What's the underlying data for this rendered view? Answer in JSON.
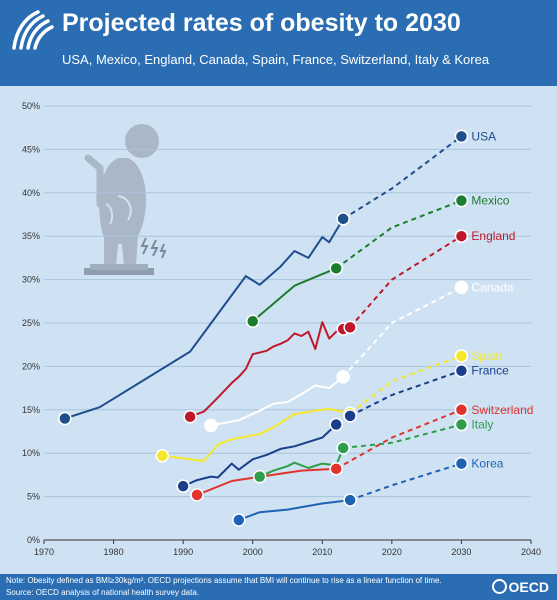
{
  "header": {
    "title": "Projected rates of obesity to 2030",
    "subtitle": "USA, Mexico, England, Canada, Spain, France, Switzerland, Italy & Korea"
  },
  "footer": {
    "note": "Note: Obesity defined as BMI≥30kg/m². OECD projections assume that BMI will continue to rise as a linear function of time.",
    "source": "Source: OECD analysis of national health survey data.",
    "brand": "OECD"
  },
  "chart_data": {
    "type": "line",
    "title": "Projected rates of obesity to 2030",
    "subtitle": "USA, Mexico, England, Canada, Spain, France, Switzerland, Italy & Korea",
    "xlabel": "",
    "ylabel": "",
    "xlim": [
      1970,
      2040
    ],
    "ylim": [
      0,
      50
    ],
    "x_ticks": [
      1970,
      1980,
      1990,
      2000,
      2010,
      2020,
      2030,
      2040
    ],
    "y_ticks": [
      0,
      5,
      10,
      15,
      20,
      25,
      30,
      35,
      40,
      45,
      50
    ],
    "y_tick_labels": [
      "0%",
      "5%",
      "10%",
      "15%",
      "20%",
      "25%",
      "30%",
      "35%",
      "40%",
      "45%",
      "50%"
    ],
    "grid": true,
    "legend": "labels at line ends (right)",
    "series": [
      {
        "name": "USA",
        "color": "#1f4e8c",
        "observed": [
          [
            1973,
            14
          ],
          [
            1978,
            15.3
          ],
          [
            1991,
            21.7
          ],
          [
            1999,
            30.4
          ],
          [
            2001,
            29.4
          ],
          [
            2004,
            31.5
          ],
          [
            2006,
            33.3
          ],
          [
            2008,
            32.5
          ],
          [
            2010,
            34.9
          ],
          [
            2011,
            34.3
          ],
          [
            2013,
            37
          ]
        ],
        "projected": [
          [
            2013,
            37
          ],
          [
            2020,
            40.5
          ],
          [
            2030,
            46.5
          ]
        ]
      },
      {
        "name": "Mexico",
        "color": "#1d7d2e",
        "observed": [
          [
            2000,
            25.2
          ],
          [
            2006,
            29.3
          ],
          [
            2012,
            31.3
          ]
        ],
        "projected": [
          [
            2012,
            31.3
          ],
          [
            2020,
            36
          ],
          [
            2030,
            39.1
          ]
        ]
      },
      {
        "name": "England",
        "color": "#c0182b",
        "observed": [
          [
            1991,
            14.2
          ],
          [
            1993,
            14.8
          ],
          [
            1995,
            16.4
          ],
          [
            1997,
            18.1
          ],
          [
            1998,
            18.8
          ],
          [
            1999,
            19.7
          ],
          [
            2000,
            21.4
          ],
          [
            2002,
            21.8
          ],
          [
            2003,
            22.3
          ],
          [
            2004,
            22.6
          ],
          [
            2005,
            23
          ],
          [
            2006,
            23.8
          ],
          [
            2007,
            23.5
          ],
          [
            2008,
            24
          ],
          [
            2009,
            22
          ],
          [
            2010,
            25.1
          ],
          [
            2011,
            23.2
          ],
          [
            2012,
            24
          ],
          [
            2013,
            24.3
          ]
        ],
        "projected": [
          [
            2014,
            24.5
          ],
          [
            2020,
            30
          ],
          [
            2030,
            35
          ]
        ]
      },
      {
        "name": "Canada",
        "color": "#ffffff",
        "observed": [
          [
            1994,
            13.2
          ],
          [
            1998,
            13.8
          ],
          [
            2001,
            14.9
          ],
          [
            2003,
            15.7
          ],
          [
            2005,
            15.9
          ],
          [
            2007,
            16.8
          ],
          [
            2009,
            17.8
          ],
          [
            2011,
            17.5
          ],
          [
            2013,
            18.8
          ]
        ],
        "projected": [
          [
            2013,
            18.8
          ],
          [
            2020,
            25
          ],
          [
            2030,
            29.1
          ]
        ]
      },
      {
        "name": "Spain",
        "color": "#f5e82a",
        "observed": [
          [
            1987,
            9.7
          ],
          [
            1993,
            9.1
          ],
          [
            1995,
            11
          ],
          [
            1997,
            11.6
          ],
          [
            2001,
            12.2
          ],
          [
            2003,
            13
          ],
          [
            2006,
            14.5
          ],
          [
            2009,
            14.9
          ],
          [
            2011,
            15.1
          ],
          [
            2014,
            14.6
          ]
        ],
        "projected": [
          [
            2014,
            14.6
          ],
          [
            2020,
            18.3
          ],
          [
            2030,
            21.2
          ]
        ]
      },
      {
        "name": "France",
        "color": "#1a3e8c",
        "observed": [
          [
            1990,
            6.2
          ],
          [
            1992,
            6.9
          ],
          [
            1994,
            7.3
          ],
          [
            1995,
            7.2
          ],
          [
            1997,
            8.8
          ],
          [
            1998,
            8.1
          ],
          [
            2000,
            9.3
          ],
          [
            2002,
            9.8
          ],
          [
            2004,
            10.5
          ],
          [
            2006,
            10.8
          ],
          [
            2008,
            11.3
          ],
          [
            2010,
            11.8
          ],
          [
            2012,
            13.3
          ]
        ],
        "projected": [
          [
            2014,
            14.3
          ],
          [
            2020,
            16.7
          ],
          [
            2030,
            19.5
          ]
        ]
      },
      {
        "name": "Switzerland",
        "color": "#e0332d",
        "observed": [
          [
            1992,
            5.2
          ],
          [
            1997,
            6.8
          ],
          [
            2002,
            7.4
          ],
          [
            2007,
            8
          ],
          [
            2012,
            8.2
          ]
        ],
        "projected": [
          [
            2012,
            8.2
          ],
          [
            2020,
            11.8
          ],
          [
            2030,
            15
          ]
        ]
      },
      {
        "name": "Italy",
        "color": "#2e9e4b",
        "observed": [
          [
            2001,
            7.3
          ],
          [
            2003,
            8
          ],
          [
            2005,
            8.5
          ],
          [
            2006,
            8.9
          ],
          [
            2008,
            8.3
          ],
          [
            2010,
            8.8
          ],
          [
            2012,
            8.6
          ],
          [
            2013,
            10.6
          ]
        ],
        "projected": [
          [
            2013,
            10.6
          ],
          [
            2020,
            11.2
          ],
          [
            2030,
            13.3
          ]
        ]
      },
      {
        "name": "Korea",
        "color": "#1e63b3",
        "observed": [
          [
            1998,
            2.3
          ],
          [
            2001,
            3.2
          ],
          [
            2005,
            3.5
          ],
          [
            2010,
            4.2
          ],
          [
            2014,
            4.6
          ]
        ],
        "projected": [
          [
            2014,
            4.6
          ],
          [
            2020,
            6.3
          ],
          [
            2030,
            8.8
          ]
        ]
      }
    ]
  }
}
